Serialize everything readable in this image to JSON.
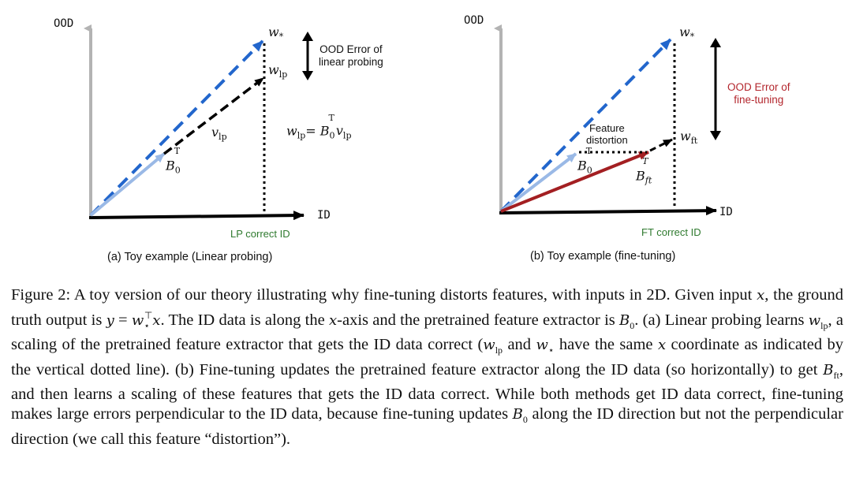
{
  "panel_a": {
    "y_axis_label": "OOD",
    "x_axis_label": "ID",
    "w_star_base": "w",
    "w_star_sub": "*",
    "w_lp_base": "w",
    "w_lp_sub": "lp",
    "v_lp_base": "v",
    "v_lp_sub": "lp",
    "b0_base": "B",
    "b0_sub": "0",
    "b0_sup": "T",
    "equation_lhs_base": "w",
    "equation_lhs_sub": "lp",
    "equation_eq": "=",
    "equation_b_base": "B",
    "equation_b_sub": "0",
    "equation_b_sup": "T",
    "equation_v_base": "v",
    "equation_v_sub": "lp",
    "ood_error_line1": "OOD Error of",
    "ood_error_line2": "linear probing",
    "correct_label": "LP correct ID",
    "caption": "(a) Toy example (Linear probing)"
  },
  "panel_b": {
    "y_axis_label": "OOD",
    "x_axis_label": "ID",
    "w_star_base": "w",
    "w_star_sub": "*",
    "w_ft_base": "w",
    "w_ft_sub": "ft",
    "b0_base": "B",
    "b0_sub": "0",
    "b0_sup": "T",
    "bft_base": "B",
    "bft_sub": "ft",
    "bft_sup": "T",
    "feature_line1": "Feature",
    "feature_line2": "distortion",
    "ood_error_line1": "OOD Error of",
    "ood_error_line2": "fine-tuning",
    "correct_label": "FT correct ID",
    "caption": "(b) Toy example (fine-tuning)"
  },
  "caption": {
    "s1": "Figure 2: A toy version of our theory illustrating why fine-tuning distorts features, with inputs in 2D. Given input ",
    "x1": "x",
    "s2": ", the ground truth output is ",
    "y": "y",
    "eq": " = ",
    "w": "w",
    "w_sub": "⋆",
    "w_sup": "⊤",
    "x2": "x",
    "s3": ". The ID data is along the ",
    "x3": "x",
    "s4": "-axis and the pretrained feature extractor is ",
    "b0": "B",
    "b0_sub": "0",
    "s5": ". (a) Linear probing learns ",
    "wlp": "w",
    "wlp_sub": "lp",
    "s6": ", a scaling of the pretrained feature extractor that gets the ID data correct (",
    "wlp2": "w",
    "wlp2_sub": "lp",
    "s7": " and ",
    "ws2": "w",
    "ws2_sub": "⋆",
    "s8": " have the same ",
    "x4": "x",
    "s9": " coordinate as indicated by the vertical dotted line). (b) Fine-tuning updates the pretrained feature extractor along the ID data (so horizontally) to get ",
    "bft": "B",
    "bft_sub": "ft",
    "s10": ", and then learns a scaling of these features that gets the ID data correct. While both methods get ID data correct, fine-tuning makes large errors perpendicular to the ID data, because fine-tuning updates ",
    "b02": "B",
    "b02_sub": "0",
    "s11": " along the ID direction but not the perpendicular direction (we call this feature “distortion”)."
  },
  "colors": {
    "axis_gray": "#b3b3b3",
    "dashed_blue": "#2266cc",
    "light_blue": "#9ab9e6",
    "dark_red": "#a31f22",
    "label_green": "#2f7a2f",
    "label_red": "#b3262d"
  }
}
